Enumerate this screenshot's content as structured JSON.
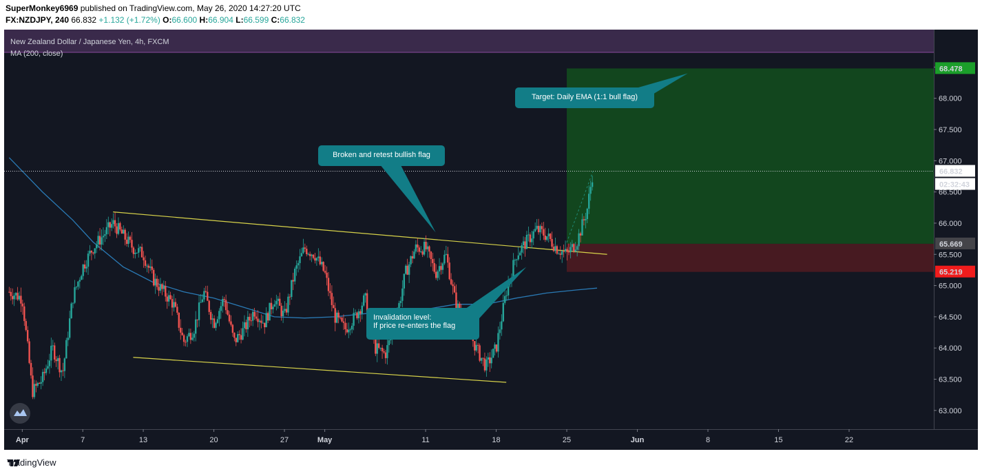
{
  "header": {
    "author": "SuperMonkey6969",
    "published": " published on TradingView.com, May 26, 2020 14:27:20 UTC",
    "symbol": "FX:NZDJPY, 240",
    "last": " 66.832 ",
    "change": "+1.132 (+1.72%)",
    "o_label": " O:",
    "o_value": "66.600",
    "h_label": " H:",
    "h_value": "66.904",
    "l_label": " L:",
    "l_value": "66.599",
    "c_label": " C:",
    "c_value": "66.832"
  },
  "legend": {
    "title": "New Zealand Dollar / Japanese Yen, 4h, FXCM",
    "indicator": "MA (200, close)"
  },
  "footer": {
    "brand": "TradingView"
  },
  "colors": {
    "background": "#131722",
    "up": "#26a69a",
    "down": "#ef5350",
    "ma": "#2a7ab5",
    "trendline": "#d8d34a",
    "target_zone": "#134b1e",
    "stop_zone": "#4a1a22",
    "note_fill": "#127d87",
    "target_tag": "#1b9e2a",
    "stop_tag": "#f01c1c",
    "entry_tag": "#444449"
  },
  "chart_data": {
    "type": "candlestick",
    "ylim": [
      62.7,
      69.1
    ],
    "y_ticks": [
      "63.000",
      "63.500",
      "64.000",
      "64.500",
      "65.000",
      "65.500",
      "66.000",
      "66.500",
      "67.000",
      "67.500",
      "68.000",
      "68.500"
    ],
    "x_ticks": [
      {
        "label": "Apr",
        "day": 1
      },
      {
        "label": "7",
        "day": 7
      },
      {
        "label": "13",
        "day": 13
      },
      {
        "label": "20",
        "day": 20
      },
      {
        "label": "27",
        "day": 27
      },
      {
        "label": "May",
        "day": 31
      },
      {
        "label": "11",
        "day": 41
      },
      {
        "label": "18",
        "day": 48
      },
      {
        "label": "25",
        "day": 55
      },
      {
        "label": "Jun",
        "day": 62
      },
      {
        "label": "8",
        "day": 69
      },
      {
        "label": "15",
        "day": 76
      },
      {
        "label": "22",
        "day": 83
      }
    ],
    "xlim_days": [
      -0.8,
      91.4
    ],
    "price_path_days": [
      [
        -0.3,
        64.9
      ],
      [
        1,
        64.8
      ],
      [
        2,
        63.3
      ],
      [
        3,
        63.5
      ],
      [
        4,
        64.0
      ],
      [
        5,
        63.6
      ],
      [
        6,
        64.8
      ],
      [
        7,
        65.3
      ],
      [
        8,
        65.6
      ],
      [
        9,
        65.8
      ],
      [
        10,
        66.0
      ],
      [
        11,
        65.8
      ],
      [
        12,
        65.6
      ],
      [
        13,
        65.5
      ],
      [
        14,
        65.1
      ],
      [
        15,
        64.9
      ],
      [
        16,
        64.7
      ],
      [
        17,
        64.1
      ],
      [
        18,
        64.3
      ],
      [
        19,
        64.9
      ],
      [
        20,
        64.4
      ],
      [
        21,
        64.8
      ],
      [
        22,
        64.1
      ],
      [
        23,
        64.3
      ],
      [
        24,
        64.6
      ],
      [
        25,
        64.4
      ],
      [
        26,
        64.8
      ],
      [
        27,
        64.5
      ],
      [
        28,
        65.2
      ],
      [
        29,
        65.6
      ],
      [
        30,
        65.5
      ],
      [
        31,
        65.2
      ],
      [
        32,
        64.5
      ],
      [
        33,
        64.3
      ],
      [
        34,
        64.5
      ],
      [
        35,
        64.8
      ],
      [
        36,
        64.0
      ],
      [
        37,
        63.9
      ],
      [
        38,
        64.4
      ],
      [
        39,
        65.2
      ],
      [
        40,
        65.6
      ],
      [
        41,
        65.6
      ],
      [
        42,
        65.2
      ],
      [
        43,
        65.5
      ],
      [
        44,
        64.7
      ],
      [
        45,
        64.4
      ],
      [
        46,
        64.0
      ],
      [
        47,
        63.7
      ],
      [
        48,
        64.0
      ],
      [
        49,
        64.9
      ],
      [
        50,
        65.5
      ],
      [
        51,
        65.7
      ],
      [
        52,
        65.9
      ],
      [
        53,
        65.8
      ],
      [
        54,
        65.6
      ],
      [
        55,
        65.5
      ],
      [
        56,
        65.7
      ],
      [
        57,
        66.2
      ],
      [
        57.6,
        66.83
      ]
    ],
    "series": [
      {
        "name": "MA (200, close)",
        "points": [
          [
            -0.3,
            67.05
          ],
          [
            3,
            66.5
          ],
          [
            6,
            66.05
          ],
          [
            8,
            65.7
          ],
          [
            11,
            65.3
          ],
          [
            14,
            65.05
          ],
          [
            17,
            64.9
          ],
          [
            20,
            64.8
          ],
          [
            23,
            64.65
          ],
          [
            26,
            64.5
          ],
          [
            29,
            64.48
          ],
          [
            32,
            64.5
          ],
          [
            35,
            64.55
          ],
          [
            38,
            64.58
          ],
          [
            41,
            64.62
          ],
          [
            44,
            64.7
          ],
          [
            47,
            64.7
          ],
          [
            50,
            64.8
          ],
          [
            53,
            64.88
          ],
          [
            56,
            64.93
          ],
          [
            58,
            64.96
          ]
        ]
      }
    ],
    "trendlines": [
      {
        "points": [
          [
            10,
            66.18
          ],
          [
            59,
            65.5
          ]
        ]
      },
      {
        "points": [
          [
            12,
            63.85
          ],
          [
            49,
            63.45
          ]
        ]
      }
    ],
    "position": {
      "start_day": 55,
      "target": 68.478,
      "entry": 65.669,
      "stop": 65.219,
      "target_label": "68.478",
      "entry_label": "65.669",
      "stop_label": "65.219"
    },
    "last_price": 66.832,
    "last_price_label": "66.832",
    "countdown_label": "02:32:43",
    "annotations": [
      {
        "text": "Target: Daily EMA (1:1 bull flag)",
        "anchor_day": 67,
        "anchor_price": 68.4
      },
      {
        "text": "Broken and retest bullish flag",
        "anchor_day": 42,
        "anchor_price": 65.85
      },
      {
        "lines": [
          "Invalidation level:",
          "If price re-enters the flag"
        ],
        "anchor_day": 51,
        "anchor_price": 65.3
      }
    ]
  }
}
